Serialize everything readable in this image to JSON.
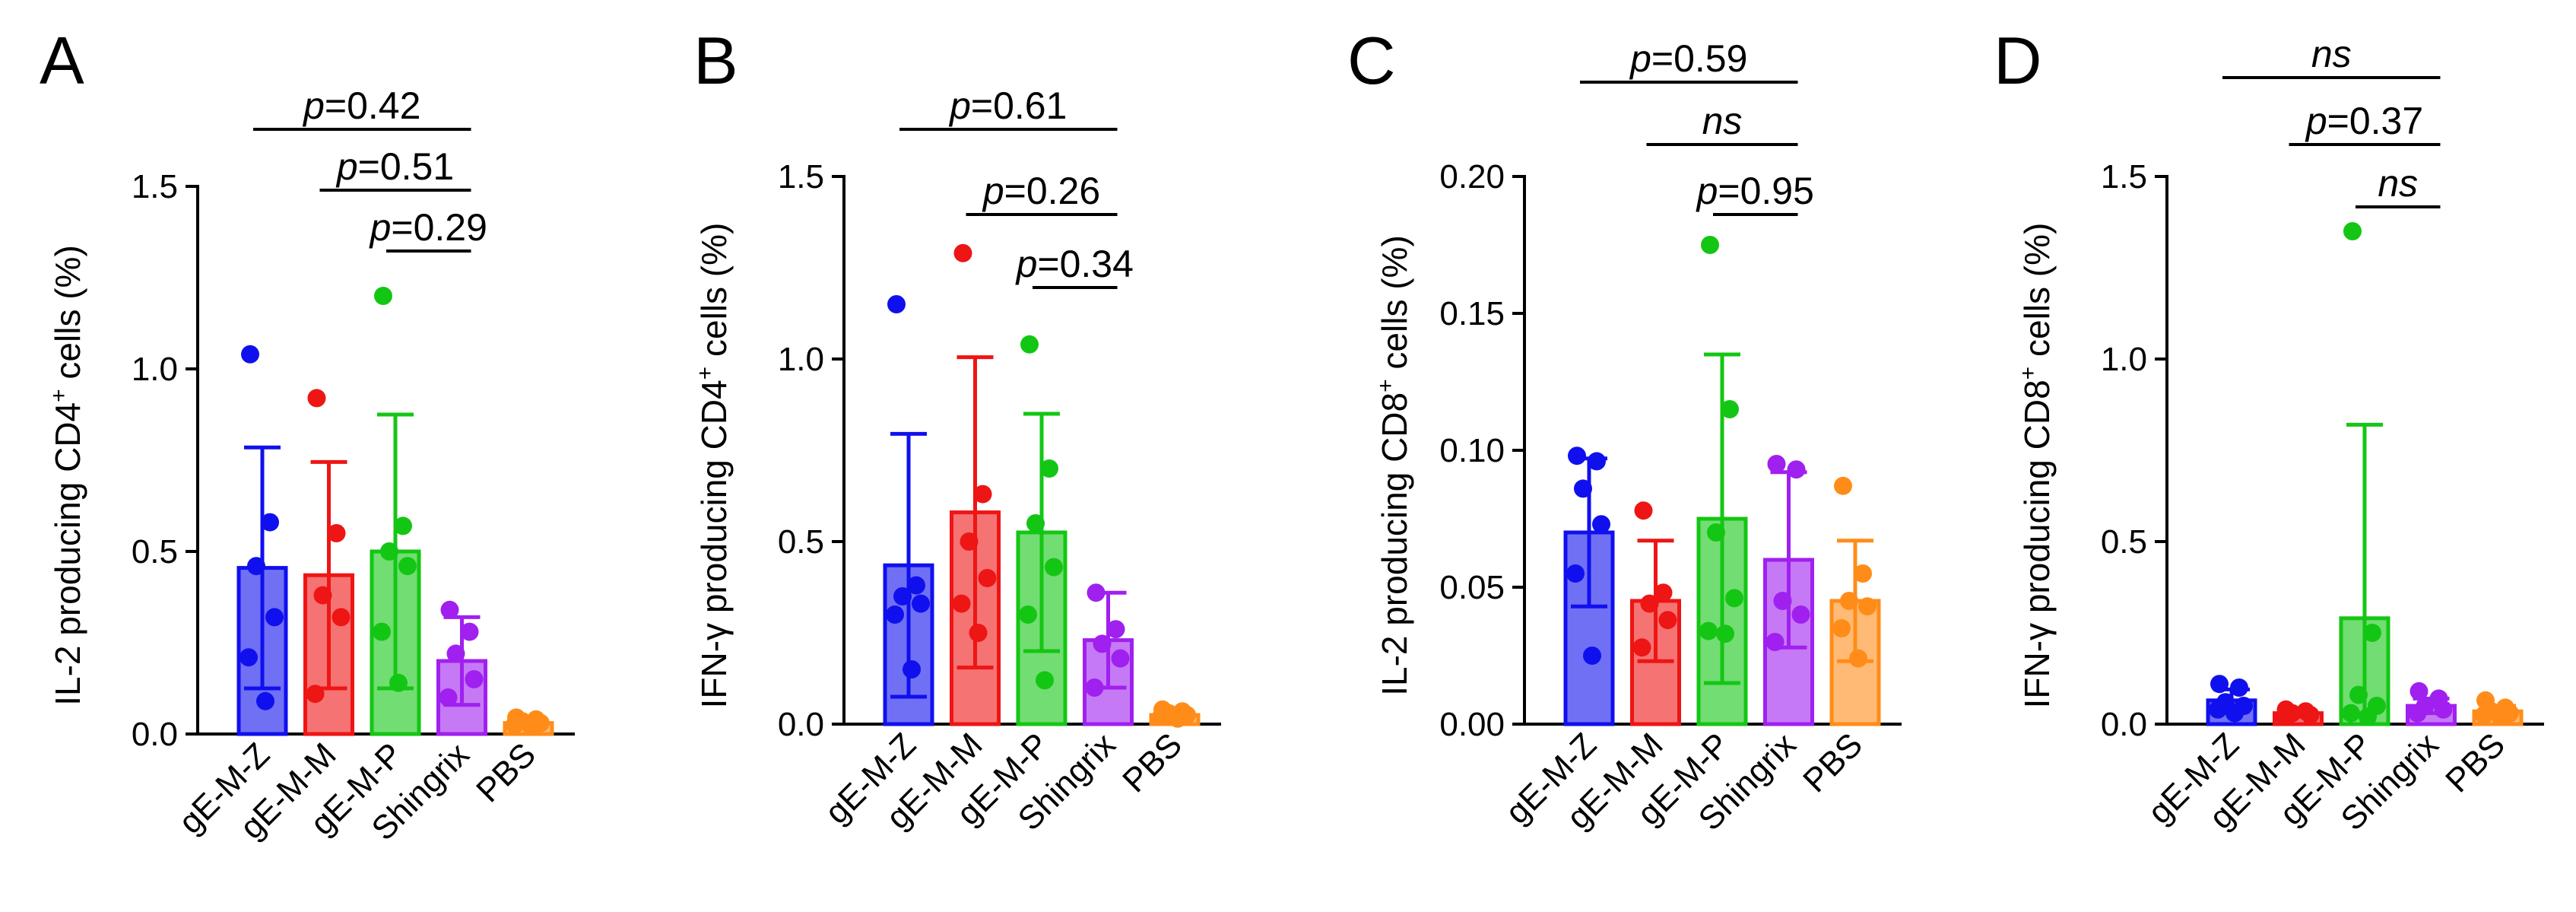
{
  "colors": {
    "gE-M-Z": "#1010ee",
    "gE-M-M": "#ee1515",
    "gE-M-P": "#14c614",
    "Shingrix": "#a020ef",
    "PBS": "#ff8c19"
  },
  "chart_data": [
    {
      "type": "bar",
      "panel": "A",
      "ylabel_pre": "IL-2 producing CD4",
      "ylabel_sup": "+",
      "ylabel_post": " cells (%)",
      "ylim": [
        0,
        1.5
      ],
      "yticks": [
        "0.0",
        "0.5",
        "1.0",
        "1.5"
      ],
      "categories": [
        "gE-M-Z",
        "gE-M-M",
        "gE-M-P",
        "Shingrix",
        "PBS"
      ],
      "values": [
        0.455,
        0.435,
        0.5,
        0.2,
        0.03
      ],
      "sd": [
        0.33,
        0.31,
        0.375,
        0.12,
        0.01
      ],
      "points": [
        [
          1.04,
          0.58,
          0.46,
          0.32,
          0.21,
          0.09
        ],
        [
          0.92,
          0.55,
          0.38,
          0.32,
          0.11
        ],
        [
          1.2,
          0.57,
          0.5,
          0.46,
          0.28,
          0.14
        ],
        [
          0.34,
          0.28,
          0.22,
          0.15,
          0.1
        ],
        [
          0.045,
          0.04,
          0.035,
          0.03,
          0.025,
          0.02
        ]
      ],
      "comparisons": [
        {
          "p": "p",
          "value": "=0.42",
          "from": "gE-M-Z",
          "to": "Shingrix"
        },
        {
          "p": "p",
          "value": "=0.51",
          "from": "gE-M-M",
          "to": "Shingrix"
        },
        {
          "p": "p",
          "value": "=0.29",
          "from": "gE-M-P",
          "to": "Shingrix"
        }
      ]
    },
    {
      "type": "bar",
      "panel": "B",
      "ylabel_pre": "IFN-γ producing CD4",
      "ylabel_sup": "+",
      "ylabel_post": " cells (%)",
      "ylim": [
        0,
        1.5
      ],
      "yticks": [
        "0.0",
        "0.5",
        "1.0",
        "1.5"
      ],
      "categories": [
        "gE-M-Z",
        "gE-M-M",
        "gE-M-P",
        "Shingrix",
        "PBS"
      ],
      "values": [
        0.435,
        0.58,
        0.525,
        0.23,
        0.025
      ],
      "sd": [
        0.36,
        0.425,
        0.325,
        0.13,
        0.01
      ],
      "points": [
        [
          1.15,
          0.38,
          0.35,
          0.33,
          0.3,
          0.15
        ],
        [
          1.29,
          0.63,
          0.5,
          0.4,
          0.33,
          0.25
        ],
        [
          1.04,
          0.7,
          0.55,
          0.43,
          0.3,
          0.12
        ],
        [
          0.36,
          0.26,
          0.22,
          0.18,
          0.1
        ],
        [
          0.04,
          0.035,
          0.03,
          0.025,
          0.02,
          0.015
        ]
      ],
      "comparisons": [
        {
          "p": "p",
          "value": "=0.61",
          "from": "gE-M-Z",
          "to": "Shingrix"
        },
        {
          "p": "p",
          "value": "=0.26",
          "from": "gE-M-M",
          "to": "Shingrix"
        },
        {
          "p": "p",
          "value": "=0.34",
          "from": "gE-M-P",
          "to": "Shingrix"
        }
      ]
    },
    {
      "type": "bar",
      "panel": "C",
      "ylabel_pre": "IL-2 producing CD8",
      "ylabel_sup": "+",
      "ylabel_post": " cells (%)",
      "ylim": [
        0,
        0.2
      ],
      "yticks": [
        "0.00",
        "0.05",
        "0.10",
        "0.15",
        "0.20"
      ],
      "categories": [
        "gE-M-Z",
        "gE-M-M",
        "gE-M-P",
        "Shingrix",
        "PBS"
      ],
      "values": [
        0.07,
        0.045,
        0.075,
        0.06,
        0.045
      ],
      "sd": [
        0.027,
        0.022,
        0.06,
        0.032,
        0.022
      ],
      "points": [
        [
          0.098,
          0.096,
          0.086,
          0.073,
          0.055,
          0.025
        ],
        [
          0.078,
          0.048,
          0.044,
          0.038,
          0.028
        ],
        [
          0.175,
          0.115,
          0.07,
          0.046,
          0.034,
          0.033
        ],
        [
          0.095,
          0.093,
          0.045,
          0.04,
          0.03
        ],
        [
          0.087,
          0.055,
          0.045,
          0.043,
          0.035,
          0.024
        ]
      ],
      "comparisons": [
        {
          "p": "p",
          "value": "=0.59",
          "from": "gE-M-Z",
          "to": "Shingrix"
        },
        {
          "p": "",
          "value": "ns",
          "from": "gE-M-M",
          "to": "Shingrix"
        },
        {
          "p": "p",
          "value": "=0.95",
          "from": "gE-M-P",
          "to": "Shingrix"
        }
      ]
    },
    {
      "type": "bar",
      "panel": "D",
      "ylabel_pre": "IFN-γ producing CD8",
      "ylabel_sup": "+",
      "ylabel_post": " cells (%)",
      "ylim": [
        0,
        1.5
      ],
      "yticks": [
        "0.0",
        "0.5",
        "1.0",
        "1.5"
      ],
      "categories": [
        "gE-M-Z",
        "gE-M-M",
        "gE-M-P",
        "Shingrix",
        "PBS"
      ],
      "values": [
        0.065,
        0.03,
        0.29,
        0.05,
        0.035
      ],
      "sd": [
        0.03,
        0.008,
        0.53,
        0.02,
        0.015
      ],
      "points": [
        [
          0.11,
          0.1,
          0.06,
          0.05,
          0.04,
          0.03
        ],
        [
          0.04,
          0.035,
          0.03,
          0.025,
          0.02
        ],
        [
          1.35,
          0.25,
          0.08,
          0.05,
          0.03,
          0.02
        ],
        [
          0.09,
          0.07,
          0.05,
          0.04,
          0.03
        ],
        [
          0.065,
          0.045,
          0.035,
          0.03,
          0.025,
          0.02
        ]
      ],
      "comparisons": [
        {
          "p": "",
          "value": "ns",
          "from": "gE-M-Z",
          "to": "Shingrix"
        },
        {
          "p": "p",
          "value": "=0.37",
          "from": "gE-M-M",
          "to": "Shingrix"
        },
        {
          "p": "",
          "value": "ns",
          "from": "gE-M-P",
          "to": "Shingrix"
        }
      ]
    }
  ]
}
